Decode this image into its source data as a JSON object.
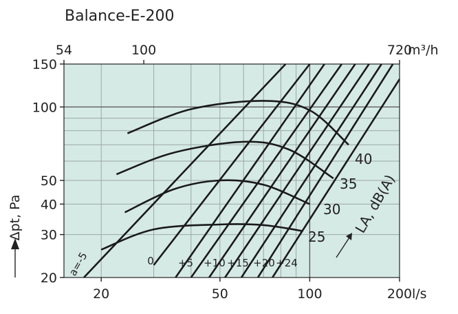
{
  "chart_data": {
    "type": "line",
    "title": "Balance-E-200",
    "xlabel": "l/s",
    "x2label": "m³/h",
    "ylabel": "Δpt, Pa",
    "xscale": "log",
    "yscale": "log",
    "xlim": [
      15,
      200
    ],
    "ylim": [
      20,
      150
    ],
    "x_ticks": [
      20,
      50,
      100,
      200
    ],
    "x2_ticks": [
      54,
      100,
      720
    ],
    "y_ticks": [
      20,
      30,
      40,
      50,
      100,
      150
    ],
    "grid": true,
    "background": "#d6eae5",
    "line_color": "#1a1a1a",
    "setting_lines": [
      {
        "label": "a=-5",
        "points": [
          [
            17.5,
            20
          ],
          [
            83,
            150
          ]
        ]
      },
      {
        "label": "0",
        "points": [
          [
            30,
            22.5
          ],
          [
            100,
            150
          ]
        ]
      },
      {
        "label": "+5",
        "points": [
          [
            35.5,
            20
          ],
          [
            112,
            150
          ]
        ]
      },
      {
        "label": "+10",
        "points": [
          [
            40,
            20
          ],
          [
            128,
            150
          ]
        ]
      },
      {
        "label": "+15",
        "points": [
          [
            46,
            20
          ],
          [
            142,
            150
          ]
        ]
      },
      {
        "label": "+20",
        "points": [
          [
            52,
            20
          ],
          [
            158,
            150
          ]
        ]
      },
      {
        "label": "+24",
        "points": [
          [
            59,
            20
          ],
          [
            174,
            150
          ]
        ]
      },
      {
        "label": "",
        "points": [
          [
            67,
            20
          ],
          [
            190,
            150
          ]
        ]
      },
      {
        "label": "",
        "points": [
          [
            75,
            20
          ],
          [
            200,
            130
          ]
        ]
      }
    ],
    "sound_curves": [
      {
        "label": "25",
        "points": [
          [
            20,
            26
          ],
          [
            30,
            31.5
          ],
          [
            50,
            33
          ],
          [
            70,
            32.8
          ],
          [
            95,
            31
          ]
        ]
      },
      {
        "label": "30",
        "points": [
          [
            24,
            37
          ],
          [
            35,
            46
          ],
          [
            50,
            50
          ],
          [
            70,
            48
          ],
          [
            100,
            40
          ]
        ]
      },
      {
        "label": "35",
        "points": [
          [
            22.5,
            53
          ],
          [
            35,
            65
          ],
          [
            60,
            72
          ],
          [
            85,
            67
          ],
          [
            120,
            51
          ]
        ]
      },
      {
        "label": "40",
        "points": [
          [
            24.5,
            78
          ],
          [
            40,
            98
          ],
          [
            70,
            106
          ],
          [
            100,
            97
          ],
          [
            135,
            70
          ]
        ]
      }
    ],
    "sound_axis_label": "LA, dB(A)"
  }
}
